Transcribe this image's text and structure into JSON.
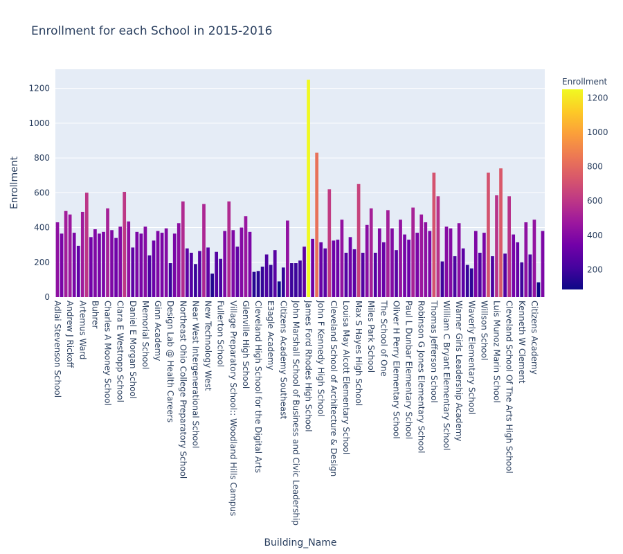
{
  "chart_data": {
    "type": "bar",
    "title": "Enrollment for each School in 2015-2016",
    "xlabel": "Building_Name",
    "ylabel": "Enrollment",
    "ylim": [
      0,
      1310
    ],
    "yticks": [
      0,
      200,
      400,
      600,
      800,
      1000,
      1200
    ],
    "grid": true,
    "legend": "none",
    "colorscale": "plasma",
    "colorbar": {
      "title": "Enrollment",
      "range": [
        85,
        1250
      ],
      "ticks": [
        200,
        400,
        600,
        800,
        1000,
        1200
      ],
      "position": "right"
    },
    "labeled_categories": [
      "Adlai Stevenson School",
      "Andrew J Rickoff",
      "Artemus Ward",
      "Buhrer",
      "Charles A Mooney School",
      "Clara E Westropp School",
      "Daniel E Morgan School",
      "Memorial School",
      "Ginn Academy",
      "Design Lab @ Health Careers",
      "Northeast Ohio College Preparatory School",
      "Near West Intergenerational School",
      "New Technology West",
      "Fullerton School",
      "Village Preparatory School:: Woodland Hills Campus",
      "Glenville High School",
      "Cleveland High School for the Digital Arts",
      "E3agle Academy",
      "Citizens Academy Southeast",
      "John Marshall School of Business and Civic Leadership",
      "James Ford Rhodes High School",
      "John F Kennedy High School",
      "Cleveland School of Architecture & Design",
      "Louisa May Alcott Elementary School",
      "Max S Hayes High School",
      "Miles Park School",
      "The School of One",
      "Oliver H Perry Elementary School",
      "Paul L Dunbar Elementary School",
      "Robinson G Jones Elementary School",
      "Thomas Jefferson School",
      "William C Bryant Elementary School",
      "Warner Girls Leadership Academy",
      "Waverly Elementary School",
      "Willson School",
      "Luis Munoz Marin School",
      "Cleveland School Of The Arts High School",
      "Kenneth W Clement",
      "Citizens Academy"
    ],
    "values": [
      430,
      365,
      495,
      475,
      370,
      295,
      490,
      600,
      345,
      390,
      365,
      375,
      510,
      385,
      340,
      405,
      605,
      435,
      285,
      375,
      365,
      405,
      240,
      325,
      380,
      370,
      395,
      195,
      365,
      425,
      550,
      280,
      255,
      190,
      265,
      535,
      285,
      135,
      260,
      220,
      380,
      550,
      385,
      290,
      400,
      465,
      375,
      145,
      150,
      175,
      245,
      185,
      270,
      90,
      170,
      440,
      195,
      195,
      210,
      290,
      1250,
      335,
      830,
      315,
      280,
      620,
      325,
      330,
      445,
      255,
      345,
      275,
      650,
      255,
      415,
      510,
      255,
      395,
      315,
      500,
      395,
      270,
      445,
      360,
      330,
      515,
      370,
      475,
      430,
      380,
      715,
      580,
      205,
      405,
      395,
      235,
      425,
      280,
      185,
      165,
      380,
      255,
      370,
      715,
      235,
      585,
      740,
      250,
      580,
      360,
      315,
      200,
      430,
      245,
      445,
      85,
      380
    ]
  }
}
